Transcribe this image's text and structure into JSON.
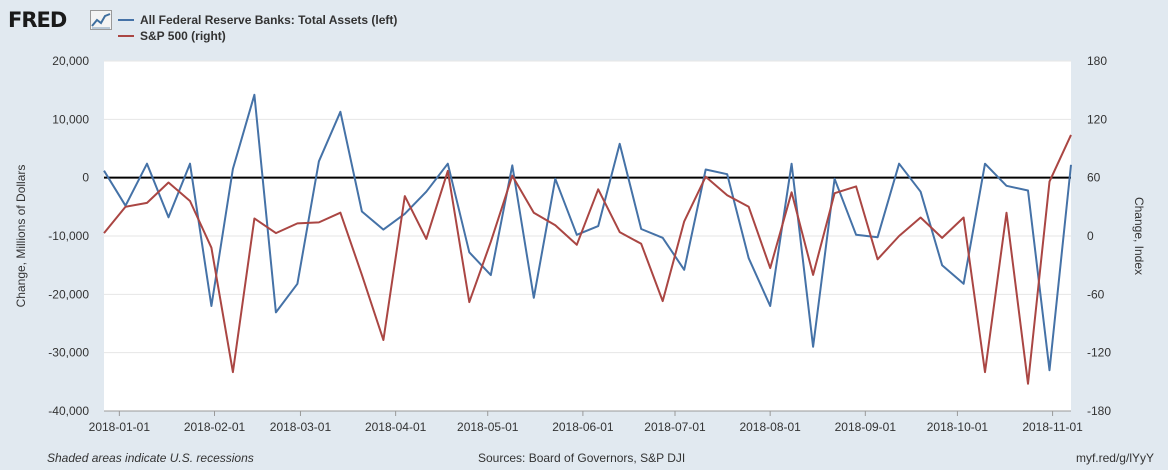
{
  "header": {
    "logo_text": "FRED",
    "logo_icon": "trend-line-icon"
  },
  "legend": [
    {
      "label": "All Federal Reserve Banks: Total Assets (left)",
      "color": "#4572a7"
    },
    {
      "label": "S&P 500 (right)",
      "color": "#aa4643"
    }
  ],
  "footer": {
    "left": "Shaded areas indicate U.S. recessions",
    "center": "Sources: Board of Governors, S&P DJI",
    "right": "myf.red/g/lYyY"
  },
  "chart_data": {
    "type": "line",
    "title": "",
    "xlabel": "",
    "ylabel_left": "Change, Millions of Dollars",
    "ylabel_right": "Change, Index",
    "ylim_left": [
      -40000,
      20000
    ],
    "ylim_right": [
      -180,
      180
    ],
    "yticks_left": [
      "20,000",
      "10,000",
      "0",
      "-10,000",
      "-20,000",
      "-30,000",
      "-40,000"
    ],
    "yticks_right": [
      "180",
      "120",
      "60",
      "0",
      "-60",
      "-120",
      "-180"
    ],
    "x_start": "2017-12-27",
    "x_end": "2018-11-07",
    "x_tick_labels": [
      "2018-01-01",
      "2018-02-01",
      "2018-03-01",
      "2018-04-01",
      "2018-05-01",
      "2018-06-01",
      "2018-07-01",
      "2018-08-01",
      "2018-09-01",
      "2018-10-01",
      "2018-11-01"
    ],
    "x_tick_dates": [
      "2018-01-01",
      "2018-02-01",
      "2018-03-01",
      "2018-04-01",
      "2018-05-01",
      "2018-06-01",
      "2018-07-01",
      "2018-08-01",
      "2018-09-01",
      "2018-10-01",
      "2018-11-01"
    ],
    "zero_line": true,
    "series": [
      {
        "name": "All Federal Reserve Banks: Total Assets (left)",
        "axis": "left",
        "color": "#4572a7",
        "x": [
          "2017-12-27",
          "2018-01-03",
          "2018-01-10",
          "2018-01-17",
          "2018-01-24",
          "2018-01-31",
          "2018-02-07",
          "2018-02-14",
          "2018-02-21",
          "2018-02-28",
          "2018-03-07",
          "2018-03-14",
          "2018-03-21",
          "2018-03-28",
          "2018-04-04",
          "2018-04-11",
          "2018-04-18",
          "2018-04-25",
          "2018-05-02",
          "2018-05-09",
          "2018-05-16",
          "2018-05-23",
          "2018-05-30",
          "2018-06-06",
          "2018-06-13",
          "2018-06-20",
          "2018-06-27",
          "2018-07-04",
          "2018-07-11",
          "2018-07-18",
          "2018-07-25",
          "2018-08-01",
          "2018-08-08",
          "2018-08-15",
          "2018-08-22",
          "2018-08-29",
          "2018-09-05",
          "2018-09-12",
          "2018-09-19",
          "2018-09-26",
          "2018-10-03",
          "2018-10-10",
          "2018-10-17",
          "2018-10-24",
          "2018-10-31",
          "2018-11-07"
        ],
        "values": [
          1200,
          -4800,
          2400,
          -6800,
          2400,
          -22000,
          1500,
          14200,
          -23100,
          -18200,
          2800,
          11300,
          -5800,
          -8900,
          -6200,
          -2400,
          2400,
          -12800,
          -16700,
          2100,
          -20600,
          -200,
          -9800,
          -8300,
          5800,
          -8800,
          -10300,
          -15800,
          1400,
          600,
          -13800,
          -22000,
          2400,
          -29000,
          -200,
          -9800,
          -10200,
          2400,
          -2400,
          -15000,
          -18200,
          2400,
          -1400,
          -2200,
          -33000,
          2200
        ]
      },
      {
        "name": "S&P 500 (right)",
        "axis": "right",
        "color": "#aa4643",
        "x": [
          "2017-12-27",
          "2018-01-03",
          "2018-01-10",
          "2018-01-17",
          "2018-01-24",
          "2018-01-31",
          "2018-02-07",
          "2018-02-14",
          "2018-02-21",
          "2018-02-28",
          "2018-03-07",
          "2018-03-14",
          "2018-03-21",
          "2018-03-28",
          "2018-04-04",
          "2018-04-11",
          "2018-04-18",
          "2018-04-25",
          "2018-05-02",
          "2018-05-09",
          "2018-05-16",
          "2018-05-23",
          "2018-05-30",
          "2018-06-06",
          "2018-06-13",
          "2018-06-20",
          "2018-06-27",
          "2018-07-04",
          "2018-07-11",
          "2018-07-18",
          "2018-07-25",
          "2018-08-01",
          "2018-08-08",
          "2018-08-15",
          "2018-08-22",
          "2018-08-29",
          "2018-09-05",
          "2018-09-12",
          "2018-09-19",
          "2018-09-26",
          "2018-10-03",
          "2018-10-10",
          "2018-10-17",
          "2018-10-24",
          "2018-10-31",
          "2018-11-07"
        ],
        "values": [
          3,
          30,
          34,
          55,
          36,
          -12,
          -140,
          18,
          3,
          13,
          14,
          24,
          -40,
          -107,
          41,
          -3,
          67,
          -68,
          -6,
          62,
          24,
          11,
          -9,
          48,
          4,
          -8,
          -67,
          15,
          61,
          42,
          30,
          -33,
          45,
          -40,
          44,
          51,
          -24,
          0,
          19,
          -2,
          19,
          -140,
          24,
          -152,
          56,
          104
        ]
      }
    ]
  }
}
